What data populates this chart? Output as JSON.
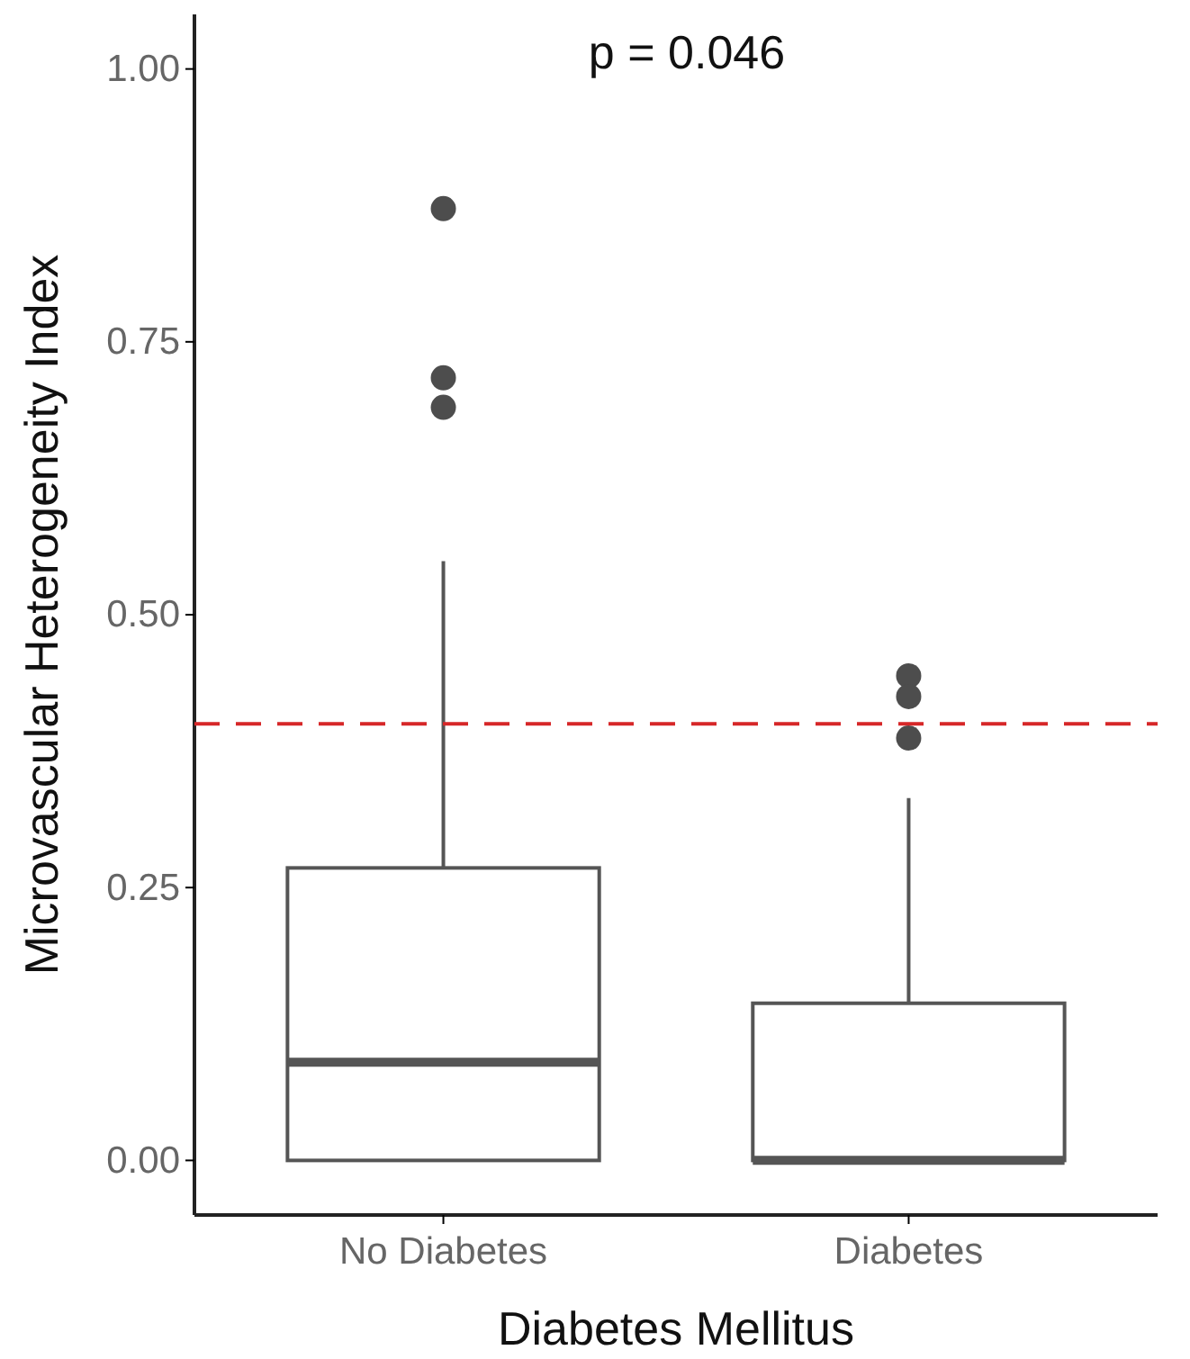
{
  "chart_data": {
    "type": "box",
    "xlabel": "Diabetes Mellitus",
    "ylabel": "Microvascular Heterogeneity Index",
    "categories": [
      "No Diabetes",
      "Diabetes"
    ],
    "boxes": [
      {
        "low": 0,
        "q1": 0,
        "median": 0.09,
        "q3": 0.268,
        "high": 0.549,
        "outliers": [
          0.872,
          0.717,
          0.69
        ]
      },
      {
        "low": 0,
        "q1": 0,
        "median": 0,
        "q3": 0.144,
        "high": 0.332,
        "outliers": [
          0.444,
          0.425,
          0.387
        ]
      }
    ],
    "ylim": [
      -0.05,
      1.05
    ],
    "yticks": [
      {
        "value": 0,
        "label": "0.00"
      },
      {
        "value": 0.25,
        "label": "0.25"
      },
      {
        "value": 0.5,
        "label": "0.50"
      },
      {
        "value": 0.75,
        "label": "0.75"
      },
      {
        "value": 1,
        "label": "1.00"
      }
    ],
    "ref_lines": [
      {
        "axis": "y",
        "value": 0.4,
        "color": "#d62728",
        "line_style": "dashed"
      }
    ],
    "annotations": [
      "p = 0.046"
    ]
  }
}
